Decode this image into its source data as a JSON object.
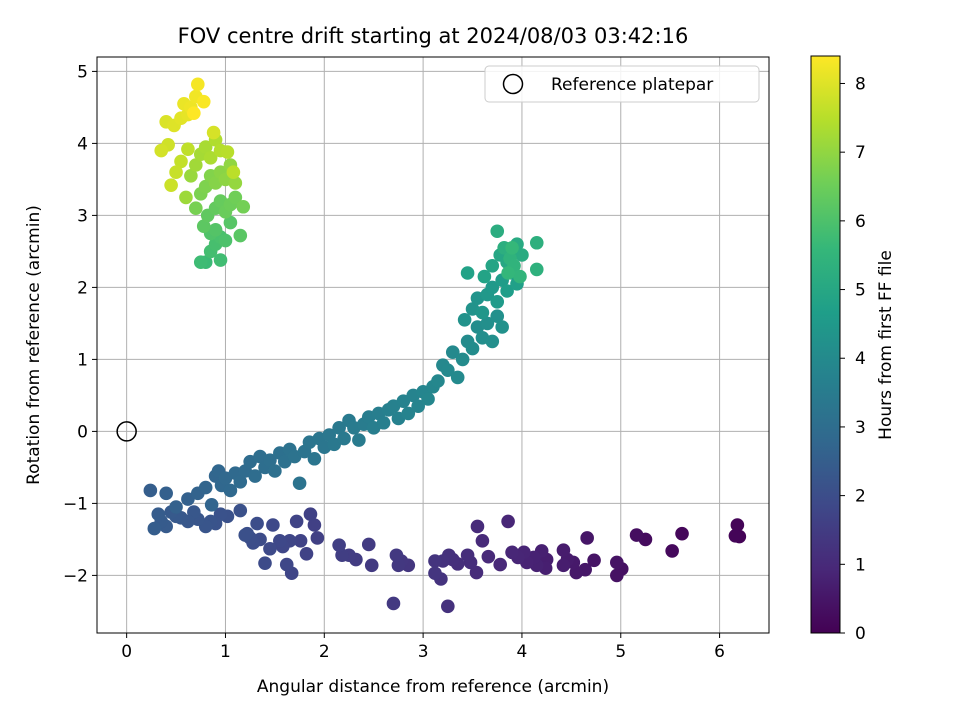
{
  "chart_data": {
    "type": "scatter",
    "title": "FOV centre drift starting at 2024/08/03 03:42:16",
    "xlabel": "Angular distance from reference (arcmin)",
    "ylabel": "Rotation from reference (arcmin)",
    "xlim": [
      -0.3,
      6.5
    ],
    "ylim": [
      -2.8,
      5.2
    ],
    "xticks": [
      0,
      1,
      2,
      3,
      4,
      5,
      6
    ],
    "yticks": [
      -2,
      -1,
      0,
      1,
      2,
      3,
      4,
      5
    ],
    "grid": true,
    "legend": {
      "position": "top-right",
      "entries": [
        "Reference platepar"
      ]
    },
    "reference_point": {
      "x": 0,
      "y": 0
    },
    "colorbar": {
      "label": "Hours from first FF file",
      "range": [
        0,
        8.4
      ],
      "ticks": [
        0,
        1,
        2,
        3,
        4,
        5,
        6,
        7,
        8
      ],
      "colormap": "viridis"
    },
    "color_stops": [
      "#440154",
      "#482878",
      "#3e4989",
      "#31688e",
      "#26828e",
      "#1f9e89",
      "#35b779",
      "#6ece58",
      "#b5de2b",
      "#fde725"
    ],
    "points": [
      [
        6.2,
        -1.46,
        0.05
      ],
      [
        6.18,
        -1.3,
        0.08
      ],
      [
        6.16,
        -1.45,
        0.1
      ],
      [
        5.62,
        -1.42,
        0.15
      ],
      [
        5.52,
        -1.66,
        0.2
      ],
      [
        5.25,
        -1.5,
        0.25
      ],
      [
        5.16,
        -1.44,
        0.3
      ],
      [
        5.01,
        -1.91,
        0.35
      ],
      [
        4.96,
        -2.0,
        0.38
      ],
      [
        4.96,
        -1.82,
        0.42
      ],
      [
        4.73,
        -1.79,
        0.45
      ],
      [
        4.66,
        -1.48,
        0.5
      ],
      [
        4.64,
        -1.92,
        0.52
      ],
      [
        4.55,
        -1.96,
        0.55
      ],
      [
        4.52,
        -1.82,
        0.58
      ],
      [
        4.46,
        -1.78,
        0.62
      ],
      [
        4.42,
        -1.65,
        0.65
      ],
      [
        4.42,
        -1.86,
        0.68
      ],
      [
        4.25,
        -1.78,
        0.7
      ],
      [
        4.24,
        -1.9,
        0.72
      ],
      [
        4.2,
        -1.66,
        0.75
      ],
      [
        4.15,
        -1.86,
        0.78
      ],
      [
        4.12,
        -1.75,
        0.8
      ],
      [
        4.05,
        -1.82,
        0.82
      ],
      [
        4.02,
        -1.68,
        0.85
      ],
      [
        3.96,
        -1.75,
        0.88
      ],
      [
        3.9,
        -1.68,
        0.9
      ],
      [
        3.86,
        -1.25,
        0.92
      ],
      [
        3.78,
        -1.85,
        0.95
      ],
      [
        3.66,
        -1.74,
        0.98
      ],
      [
        3.6,
        -1.52,
        1.0
      ],
      [
        3.55,
        -1.32,
        1.02
      ],
      [
        3.54,
        -1.96,
        1.05
      ],
      [
        3.48,
        -1.82,
        1.08
      ],
      [
        3.45,
        -1.72,
        1.1
      ],
      [
        3.35,
        -1.84,
        1.12
      ],
      [
        3.3,
        -1.78,
        1.15
      ],
      [
        3.26,
        -1.72,
        1.18
      ],
      [
        3.25,
        -2.43,
        1.2
      ],
      [
        3.2,
        -1.8,
        1.22
      ],
      [
        3.18,
        -2.05,
        1.25
      ],
      [
        3.12,
        -1.8,
        1.28
      ],
      [
        3.12,
        -1.97,
        1.3
      ],
      [
        2.85,
        -1.86,
        1.32
      ],
      [
        2.78,
        -1.8,
        1.35
      ],
      [
        2.75,
        -1.86,
        1.38
      ],
      [
        2.73,
        -1.72,
        1.4
      ],
      [
        2.7,
        -2.39,
        1.42
      ],
      [
        2.48,
        -1.86,
        1.45
      ],
      [
        2.45,
        -1.57,
        1.48
      ],
      [
        2.32,
        -1.78,
        1.5
      ],
      [
        2.25,
        -1.72,
        1.52
      ],
      [
        2.18,
        -1.72,
        1.55
      ],
      [
        2.15,
        -1.58,
        1.58
      ],
      [
        1.93,
        -1.48,
        1.6
      ],
      [
        1.9,
        -1.3,
        1.62
      ],
      [
        1.86,
        -1.15,
        1.65
      ],
      [
        1.82,
        -1.7,
        1.68
      ],
      [
        1.76,
        -1.52,
        1.7
      ],
      [
        1.72,
        -1.25,
        1.72
      ],
      [
        1.67,
        -1.97,
        1.75
      ],
      [
        1.65,
        -1.52,
        1.78
      ],
      [
        1.62,
        -1.85,
        1.8
      ],
      [
        1.58,
        -1.6,
        1.82
      ],
      [
        1.55,
        -1.52,
        1.85
      ],
      [
        1.48,
        -1.3,
        1.88
      ],
      [
        1.45,
        -1.63,
        1.9
      ],
      [
        1.4,
        -1.83,
        1.92
      ],
      [
        1.35,
        -1.5,
        1.95
      ],
      [
        1.32,
        -1.28,
        1.98
      ],
      [
        1.28,
        -1.55,
        2.0
      ],
      [
        1.25,
        -1.48,
        2.02
      ],
      [
        1.22,
        -1.42,
        2.05
      ],
      [
        1.2,
        -1.44,
        2.08
      ],
      [
        1.15,
        -1.1,
        2.1
      ],
      [
        1.02,
        -1.18,
        2.12
      ],
      [
        0.95,
        -1.15,
        2.15
      ],
      [
        0.9,
        -1.28,
        2.18
      ],
      [
        0.85,
        -1.25,
        2.2
      ],
      [
        0.8,
        -1.32,
        2.22
      ],
      [
        0.72,
        -1.22,
        2.25
      ],
      [
        0.68,
        -1.12,
        2.28
      ],
      [
        0.62,
        -1.25,
        2.3
      ],
      [
        0.55,
        -1.2,
        2.32
      ],
      [
        0.5,
        -1.18,
        2.35
      ],
      [
        0.45,
        -1.12,
        2.38
      ],
      [
        0.4,
        -1.32,
        2.4
      ],
      [
        0.35,
        -1.25,
        2.42
      ],
      [
        0.32,
        -1.15,
        2.45
      ],
      [
        0.28,
        -1.35,
        2.48
      ],
      [
        0.24,
        -0.82,
        2.5
      ],
      [
        0.4,
        -0.86,
        2.55
      ],
      [
        0.5,
        -1.05,
        2.58
      ],
      [
        0.62,
        -0.94,
        2.6
      ],
      [
        0.72,
        -0.86,
        2.65
      ],
      [
        0.8,
        -0.78,
        2.7
      ],
      [
        0.86,
        -1.02,
        2.72
      ],
      [
        0.9,
        -0.62,
        2.75
      ],
      [
        0.93,
        -0.55,
        2.78
      ],
      [
        0.96,
        -0.75,
        2.8
      ],
      [
        1.0,
        -0.65,
        2.82
      ],
      [
        1.05,
        -0.82,
        2.85
      ],
      [
        1.1,
        -0.58,
        2.88
      ],
      [
        1.15,
        -0.7,
        2.9
      ],
      [
        1.2,
        -0.55,
        2.92
      ],
      [
        1.25,
        -0.42,
        2.95
      ],
      [
        1.3,
        -0.62,
        2.98
      ],
      [
        1.35,
        -0.35,
        3.0
      ],
      [
        1.4,
        -0.5,
        3.02
      ],
      [
        1.45,
        -0.4,
        3.05
      ],
      [
        1.5,
        -0.55,
        3.08
      ],
      [
        1.55,
        -0.3,
        3.1
      ],
      [
        1.6,
        -0.42,
        3.12
      ],
      [
        1.65,
        -0.25,
        3.15
      ],
      [
        1.7,
        -0.35,
        3.18
      ],
      [
        1.75,
        -0.72,
        3.2
      ],
      [
        1.8,
        -0.28,
        3.22
      ],
      [
        1.85,
        -0.15,
        3.25
      ],
      [
        1.9,
        -0.38,
        3.28
      ],
      [
        1.95,
        -0.1,
        3.3
      ],
      [
        2.0,
        -0.22,
        3.32
      ],
      [
        2.05,
        -0.05,
        3.35
      ],
      [
        2.1,
        -0.18,
        3.38
      ],
      [
        2.15,
        0.05,
        3.4
      ],
      [
        2.2,
        -0.1,
        3.42
      ],
      [
        2.25,
        0.15,
        3.45
      ],
      [
        2.3,
        0.05,
        3.48
      ],
      [
        2.35,
        -0.12,
        3.5
      ],
      [
        2.4,
        0.1,
        3.52
      ],
      [
        2.45,
        0.2,
        3.55
      ],
      [
        2.5,
        0.05,
        3.58
      ],
      [
        2.55,
        0.25,
        3.6
      ],
      [
        2.6,
        0.12,
        3.62
      ],
      [
        2.65,
        0.3,
        3.65
      ],
      [
        2.7,
        0.35,
        3.68
      ],
      [
        2.75,
        0.18,
        3.7
      ],
      [
        2.8,
        0.42,
        3.72
      ],
      [
        2.85,
        0.25,
        3.75
      ],
      [
        2.9,
        0.5,
        3.78
      ],
      [
        2.95,
        0.35,
        3.8
      ],
      [
        3.0,
        0.55,
        3.82
      ],
      [
        3.05,
        0.45,
        3.85
      ],
      [
        3.1,
        0.62,
        3.88
      ],
      [
        3.15,
        0.7,
        3.9
      ],
      [
        3.2,
        0.92,
        3.92
      ],
      [
        3.25,
        0.85,
        3.95
      ],
      [
        3.3,
        1.1,
        3.98
      ],
      [
        3.35,
        0.75,
        4.0
      ],
      [
        3.4,
        1.0,
        4.02
      ],
      [
        3.45,
        1.25,
        4.05
      ],
      [
        3.5,
        1.15,
        4.08
      ],
      [
        3.55,
        1.45,
        4.1
      ],
      [
        3.6,
        1.3,
        4.12
      ],
      [
        3.65,
        1.5,
        4.15
      ],
      [
        3.7,
        1.25,
        4.18
      ],
      [
        3.75,
        1.6,
        4.2
      ],
      [
        3.8,
        1.45,
        4.22
      ],
      [
        3.42,
        1.55,
        4.25
      ],
      [
        3.5,
        1.7,
        4.3
      ],
      [
        3.55,
        1.85,
        4.35
      ],
      [
        3.6,
        1.65,
        4.4
      ],
      [
        3.65,
        1.9,
        4.45
      ],
      [
        3.7,
        2.0,
        4.5
      ],
      [
        3.75,
        1.8,
        4.55
      ],
      [
        3.8,
        2.1,
        4.6
      ],
      [
        3.85,
        1.95,
        4.65
      ],
      [
        3.9,
        2.2,
        4.7
      ],
      [
        3.95,
        2.05,
        4.75
      ],
      [
        3.45,
        2.2,
        4.8
      ],
      [
        3.62,
        2.15,
        4.85
      ],
      [
        3.7,
        2.3,
        4.9
      ],
      [
        3.78,
        2.45,
        4.95
      ],
      [
        3.85,
        2.35,
        5.0
      ],
      [
        3.9,
        2.5,
        5.05
      ],
      [
        3.95,
        2.6,
        5.1
      ],
      [
        4.0,
        2.45,
        5.15
      ],
      [
        3.75,
        2.78,
        5.2
      ],
      [
        3.82,
        2.55,
        5.25
      ],
      [
        4.15,
        2.62,
        5.3
      ],
      [
        4.15,
        2.25,
        5.35
      ],
      [
        3.88,
        2.4,
        5.4
      ],
      [
        3.92,
        2.3,
        5.45
      ],
      [
        3.98,
        2.15,
        5.5
      ],
      [
        3.86,
        2.2,
        5.55
      ],
      [
        3.9,
        2.55,
        5.6
      ],
      [
        0.8,
        2.35,
        5.7
      ],
      [
        0.75,
        2.35,
        5.75
      ],
      [
        0.95,
        2.38,
        5.8
      ],
      [
        0.85,
        2.5,
        5.85
      ],
      [
        0.9,
        2.6,
        5.9
      ],
      [
        0.95,
        2.7,
        5.95
      ],
      [
        1.0,
        2.65,
        6.0
      ],
      [
        0.85,
        2.75,
        6.05
      ],
      [
        0.9,
        2.8,
        6.1
      ],
      [
        1.05,
        2.9,
        6.15
      ],
      [
        1.15,
        2.72,
        6.2
      ],
      [
        0.78,
        2.85,
        6.25
      ],
      [
        0.82,
        3.0,
        6.3
      ],
      [
        0.9,
        3.1,
        6.35
      ],
      [
        0.95,
        3.2,
        6.4
      ],
      [
        1.0,
        3.05,
        6.45
      ],
      [
        1.05,
        3.15,
        6.5
      ],
      [
        1.1,
        3.25,
        6.55
      ],
      [
        1.18,
        3.12,
        6.6
      ],
      [
        0.7,
        3.1,
        6.65
      ],
      [
        0.75,
        3.3,
        6.7
      ],
      [
        0.8,
        3.4,
        6.75
      ],
      [
        0.85,
        3.55,
        6.8
      ],
      [
        0.9,
        3.45,
        6.85
      ],
      [
        0.95,
        3.6,
        6.9
      ],
      [
        1.0,
        3.5,
        6.95
      ],
      [
        1.05,
        3.7,
        7.0
      ],
      [
        1.1,
        3.45,
        7.05
      ],
      [
        0.65,
        3.55,
        7.1
      ],
      [
        0.6,
        3.25,
        7.15
      ],
      [
        0.7,
        3.7,
        7.2
      ],
      [
        0.75,
        3.85,
        7.25
      ],
      [
        0.8,
        3.95,
        7.3
      ],
      [
        0.85,
        3.8,
        7.35
      ],
      [
        0.9,
        4.05,
        7.4
      ],
      [
        0.95,
        3.9,
        7.45
      ],
      [
        1.02,
        3.88,
        7.5
      ],
      [
        1.08,
        3.6,
        7.55
      ],
      [
        0.62,
        3.92,
        7.6
      ],
      [
        0.55,
        3.75,
        7.65
      ],
      [
        0.5,
        3.6,
        7.7
      ],
      [
        0.45,
        3.42,
        7.75
      ],
      [
        0.42,
        3.98,
        7.8
      ],
      [
        0.35,
        3.9,
        7.85
      ],
      [
        0.88,
        4.15,
        7.9
      ],
      [
        0.4,
        4.3,
        7.95
      ],
      [
        0.48,
        4.25,
        8.0
      ],
      [
        0.55,
        4.35,
        8.05
      ],
      [
        0.62,
        4.4,
        8.1
      ],
      [
        0.58,
        4.55,
        8.15
      ],
      [
        0.65,
        4.5,
        8.2
      ],
      [
        0.7,
        4.65,
        8.25
      ],
      [
        0.72,
        4.82,
        8.3
      ],
      [
        0.78,
        4.58,
        8.35
      ],
      [
        0.68,
        4.42,
        8.4
      ]
    ]
  }
}
